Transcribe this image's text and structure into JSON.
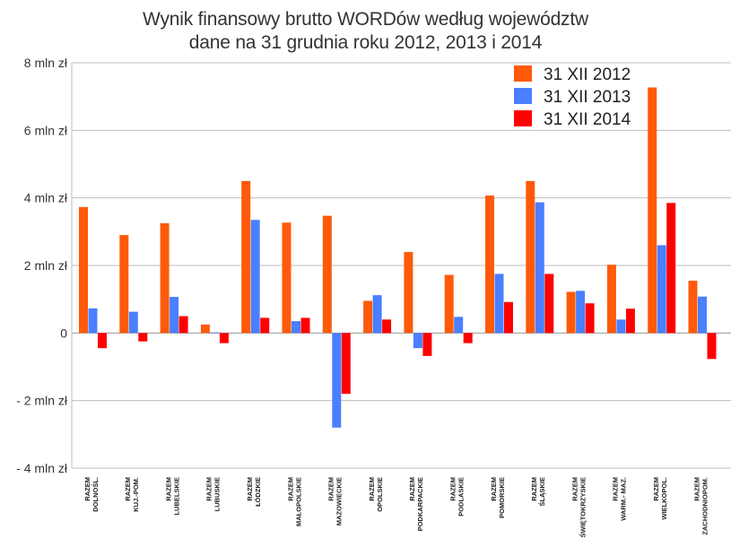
{
  "chart_data": {
    "type": "bar",
    "title": "Wynik finansowy brutto WORDów według województw",
    "subtitle": "dane na 31 grudnia roku 2012, 2013 i 2014",
    "xlabel": "",
    "ylabel": "",
    "ylim": [
      -4,
      8
    ],
    "yticks": [
      {
        "value": 8,
        "label": "8 mln zł"
      },
      {
        "value": 6,
        "label": "6 mln zł"
      },
      {
        "value": 4,
        "label": "4 mln zł"
      },
      {
        "value": 2,
        "label": "2 mln zł"
      },
      {
        "value": 0,
        "label": "0"
      },
      {
        "value": -2,
        "label": "- 2 mln zł"
      },
      {
        "value": -4,
        "label": "- 4 mln zł"
      }
    ],
    "grid": true,
    "legend_position": "top-right",
    "categories": [
      [
        "RAZEM",
        "DOLNOŚL."
      ],
      [
        "RAZEM",
        "KUJ.-POM."
      ],
      [
        "RAZEM",
        "LUBELSKIE"
      ],
      [
        "RAZEM",
        "LUBUSKIE"
      ],
      [
        "RAZEM",
        "ŁÓDZKIE"
      ],
      [
        "RAZEM",
        "MAŁOPOLSKIE"
      ],
      [
        "RAZEM",
        "MAZOWIECKIE"
      ],
      [
        "RAZEM",
        "OPOLSKIE"
      ],
      [
        "RAZEM",
        "PODKARPACKIE"
      ],
      [
        "RAZEM",
        "PODLASKIE"
      ],
      [
        "RAZEM",
        "POMORSKIE"
      ],
      [
        "RAZEM",
        "ŚLĄSKIE"
      ],
      [
        "RAZEM",
        "ŚWIĘTOKRZYSKIE"
      ],
      [
        "RAZEM",
        "WARM.- MAZ."
      ],
      [
        "RAZEM",
        "WIELKOPOL."
      ],
      [
        "RAZEM",
        "ZACHODNIOPOM."
      ]
    ],
    "series": [
      {
        "name": "31 XII 2012",
        "color": "#ff5a0a",
        "values": [
          3.73,
          2.9,
          3.25,
          0.25,
          4.5,
          3.27,
          3.47,
          0.95,
          2.4,
          1.72,
          4.07,
          4.5,
          1.22,
          2.02,
          7.27,
          1.55
        ]
      },
      {
        "name": "31 XII 2013",
        "color": "#4a7fff",
        "values": [
          0.73,
          0.63,
          1.07,
          0.02,
          3.35,
          0.35,
          -2.8,
          1.12,
          -0.45,
          0.48,
          1.75,
          3.87,
          1.25,
          0.4,
          2.6,
          1.08
        ]
      },
      {
        "name": "31 XII 2014",
        "color": "#ff0000",
        "values": [
          -0.45,
          -0.25,
          0.5,
          -0.3,
          0.45,
          0.45,
          -1.8,
          0.4,
          -0.68,
          -0.3,
          0.92,
          1.75,
          0.88,
          0.72,
          3.85,
          -0.77
        ]
      }
    ]
  }
}
